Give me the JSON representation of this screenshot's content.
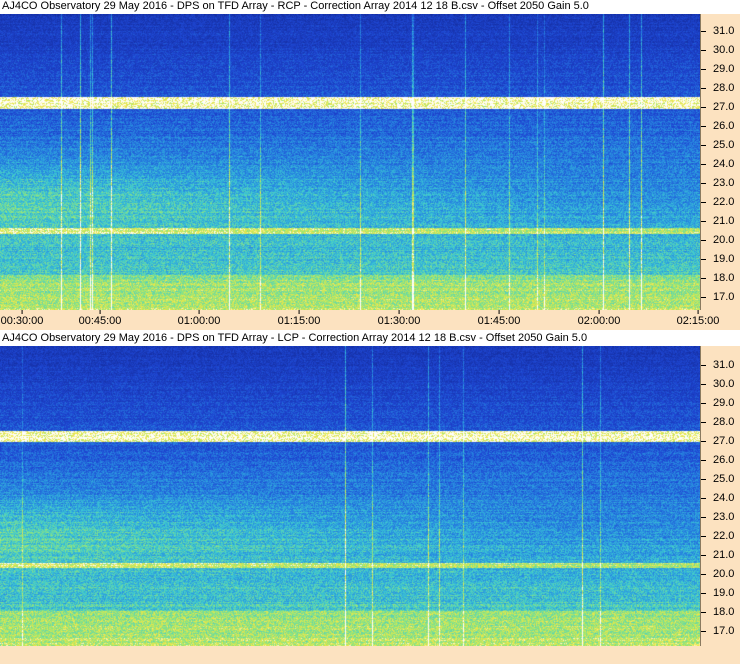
{
  "panels": [
    {
      "id": "rcp",
      "title": "AJ4CO Observatory 29 May 2016  -  DPS on TFD Array  -  RCP  -  Correction Array 2014 12 18 B.csv  -  Offset 2050  Gain 5.0",
      "freq_ticks": [
        "31.0",
        "30.0",
        "29.0",
        "28.0",
        "27.0",
        "26.0",
        "25.0",
        "24.0",
        "23.0",
        "22.0",
        "21.0",
        "20.0",
        "19.0",
        "18.0",
        "17.0"
      ],
      "time_ticks": [
        "00:30:00",
        "00:45:00",
        "01:00:00",
        "01:15:00",
        "01:30:00",
        "01:45:00",
        "02:00:00",
        "02:15:00"
      ]
    },
    {
      "id": "lcp",
      "title": "AJ4CO Observatory 29 May 2016  -  DPS on TFD Array  -  LCP  -  Correction Array 2014 12 18 B.csv  -  Offset 2050  Gain 5.0",
      "freq_ticks": [
        "31.0",
        "30.0",
        "29.0",
        "28.0",
        "27.0",
        "26.0",
        "25.0",
        "24.0",
        "23.0",
        "22.0",
        "21.0",
        "20.0",
        "19.0",
        "18.0",
        "17.0"
      ],
      "time_ticks": []
    }
  ],
  "colors": {
    "axis_bg": "#fce2c0",
    "spectrogram_low": "#1e3fb8",
    "spectrogram_high": "#f3e63c"
  }
}
